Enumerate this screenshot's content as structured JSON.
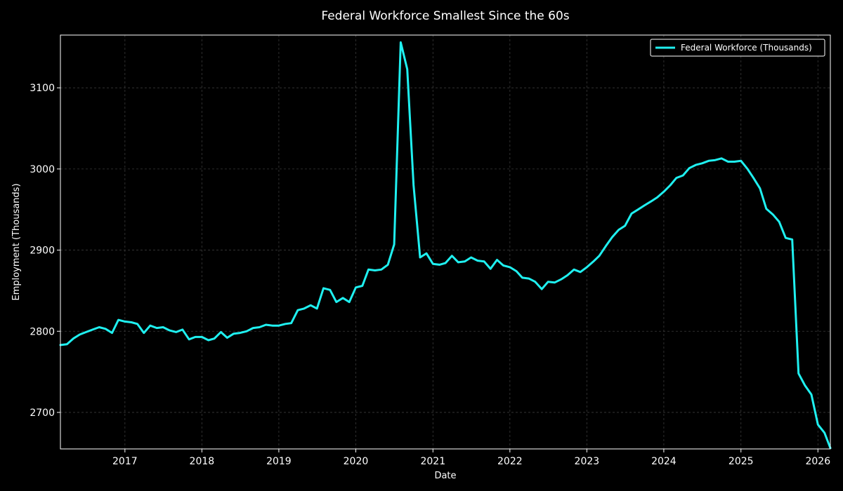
{
  "chart_data": {
    "type": "line",
    "title": "Federal Workforce Smallest Since the 60s",
    "xlabel": "Date",
    "ylabel": "Employment (Thousands)",
    "xlim": [
      "2016-03-01",
      "2026-03-01"
    ],
    "ylim": [
      2655,
      3165
    ],
    "x_ticks": [
      "2017",
      "2018",
      "2019",
      "2020",
      "2021",
      "2022",
      "2023",
      "2024",
      "2025",
      "2026"
    ],
    "y_ticks": [
      2700,
      2800,
      2900,
      3000,
      3100
    ],
    "grid": true,
    "legend_position": "top-right",
    "background_color": "#000000",
    "text_color": "#ffffff",
    "series": [
      {
        "name": "Federal Workforce (Thousands)",
        "color": "#1ff0f0",
        "x": [
          "2016-03",
          "2016-04",
          "2016-05",
          "2016-06",
          "2016-07",
          "2016-08",
          "2016-09",
          "2016-10",
          "2016-11",
          "2016-12",
          "2017-01",
          "2017-02",
          "2017-03",
          "2017-04",
          "2017-05",
          "2017-06",
          "2017-07",
          "2017-08",
          "2017-09",
          "2017-10",
          "2017-11",
          "2017-12",
          "2018-01",
          "2018-02",
          "2018-03",
          "2018-04",
          "2018-05",
          "2018-06",
          "2018-07",
          "2018-08",
          "2018-09",
          "2018-10",
          "2018-11",
          "2018-12",
          "2019-01",
          "2019-02",
          "2019-03",
          "2019-04",
          "2019-05",
          "2019-06",
          "2019-07",
          "2019-08",
          "2019-09",
          "2019-10",
          "2019-11",
          "2019-12",
          "2020-01",
          "2020-02",
          "2020-03",
          "2020-04",
          "2020-05",
          "2020-06",
          "2020-07",
          "2020-08",
          "2020-09",
          "2020-10",
          "2020-11",
          "2020-12",
          "2021-01",
          "2021-02",
          "2021-03",
          "2021-04",
          "2021-05",
          "2021-06",
          "2021-07",
          "2021-08",
          "2021-09",
          "2021-10",
          "2021-11",
          "2021-12",
          "2022-01",
          "2022-02",
          "2022-03",
          "2022-04",
          "2022-05",
          "2022-06",
          "2022-07",
          "2022-08",
          "2022-09",
          "2022-10",
          "2022-11",
          "2022-12",
          "2023-01",
          "2023-02",
          "2023-03",
          "2023-04",
          "2023-05",
          "2023-06",
          "2023-07",
          "2023-08",
          "2023-09",
          "2023-10",
          "2023-11",
          "2023-12",
          "2024-01",
          "2024-02",
          "2024-03",
          "2024-04",
          "2024-05",
          "2024-06",
          "2024-07",
          "2024-08",
          "2024-09",
          "2024-10",
          "2024-11",
          "2024-12",
          "2025-01",
          "2025-02",
          "2025-03",
          "2025-04",
          "2025-05",
          "2025-06",
          "2025-07",
          "2025-08",
          "2025-09",
          "2025-10",
          "2025-11",
          "2025-12",
          "2026-01",
          "2026-02",
          "2026-03"
        ],
        "values": [
          2783,
          2784,
          2791,
          2796,
          2799,
          2802,
          2805,
          2803,
          2798,
          2814,
          2812,
          2811,
          2809,
          2798,
          2807,
          2804,
          2805,
          2801,
          2799,
          2802,
          2790,
          2793,
          2793,
          2789,
          2791,
          2799,
          2792,
          2797,
          2798,
          2800,
          2804,
          2805,
          2808,
          2807,
          2807,
          2809,
          2810,
          2826,
          2828,
          2832,
          2828,
          2853,
          2851,
          2836,
          2841,
          2836,
          2854,
          2856,
          2876,
          2875,
          2876,
          2882,
          2907,
          3156,
          3123,
          2980,
          2891,
          2896,
          2883,
          2882,
          2884,
          2893,
          2885,
          2886,
          2891,
          2887,
          2886,
          2877,
          2888,
          2881,
          2879,
          2874,
          2866,
          2865,
          2861,
          2852,
          2861,
          2860,
          2864,
          2869,
          2876,
          2873,
          2879,
          2886,
          2893,
          2905,
          2916,
          2925,
          2930,
          2945,
          2950,
          2955,
          2960,
          2965,
          2972,
          2980,
          2989,
          2992,
          3001,
          3005,
          3007,
          3010,
          3011,
          3013,
          3009,
          3009,
          3010,
          3000,
          2989,
          2976,
          2951,
          2944,
          2935,
          2915,
          2913,
          2748,
          2733,
          2722,
          2685,
          2675,
          2656
        ]
      }
    ]
  }
}
